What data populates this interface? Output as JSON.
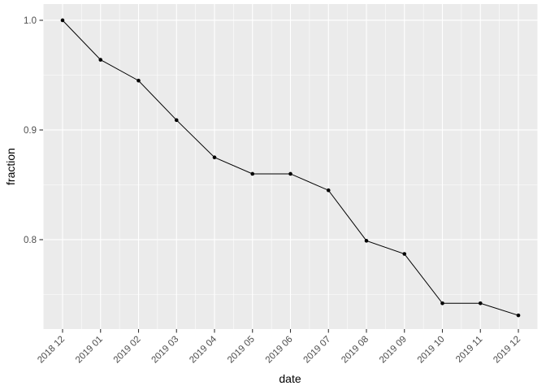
{
  "chart_data": {
    "type": "line",
    "title": "",
    "xlabel": "date",
    "ylabel": "fraction",
    "categories": [
      "2018 12",
      "2019 01",
      "2019 02",
      "2019 03",
      "2019 04",
      "2019 05",
      "2019 06",
      "2019 07",
      "2019 08",
      "2019 09",
      "2019 10",
      "2019 11",
      "2019 12"
    ],
    "values": [
      1.0,
      0.964,
      0.945,
      0.909,
      0.875,
      0.86,
      0.86,
      0.845,
      0.799,
      0.787,
      0.742,
      0.742,
      0.731
    ],
    "y_ticks": [
      0.8,
      0.9,
      1.0
    ],
    "y_minor_ticks": [
      0.75,
      0.85,
      0.95
    ],
    "ylim": [
      0.7185,
      1.0148
    ],
    "x_tick_label_angle": -45,
    "grid": true,
    "legend_position": "none",
    "style": {
      "panel_bg": "#EBEBEB",
      "grid_major_color": "#FFFFFF",
      "grid_minor_color": "#FFFFFF",
      "line_color": "#000000",
      "point_color": "#000000",
      "tick_mark_color": "#333333",
      "tick_label_color": "#4D4D4D",
      "axis_title_color": "#000000",
      "background": "#FFFFFF"
    }
  }
}
